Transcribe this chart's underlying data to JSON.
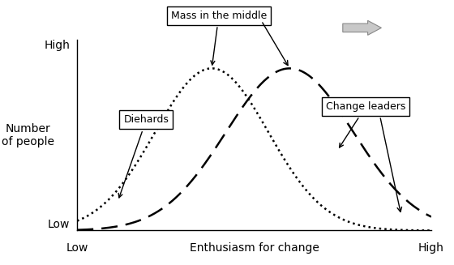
{
  "ylabel_line1": "Number",
  "ylabel_line2": "of people",
  "xlabel": "Enthusiasm for change",
  "ytick_high": "High",
  "ytick_low": "Low",
  "xtick_low": "Low",
  "xtick_high": "High",
  "curve1_mean": 0.38,
  "curve1_std": 0.16,
  "curve2_mean": 0.6,
  "curve2_std": 0.18,
  "curve_color": "#000000",
  "curve_linewidth": 1.8,
  "label_mass": "Mass in the middle",
  "label_diehards": "Diehards",
  "label_change": "Change leaders",
  "arrow_fill": "#c8c8c8",
  "arrow_edge": "#888888",
  "bg_color": "#ffffff",
  "font_size": 10,
  "annotation_font_size": 9
}
